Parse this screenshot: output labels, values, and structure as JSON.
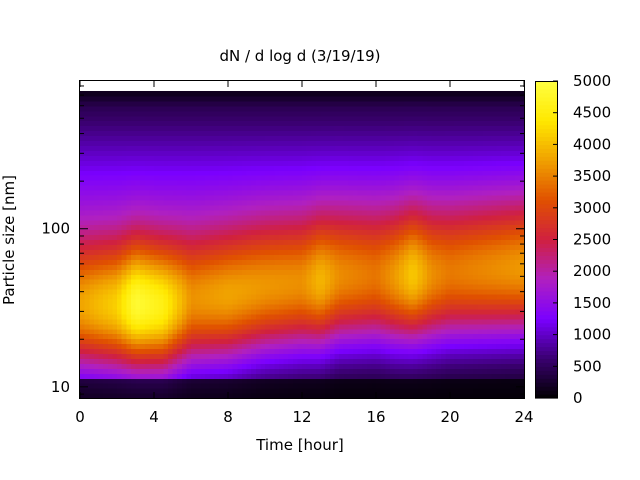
{
  "chart_data": {
    "type": "heatmap",
    "title": "dN / d log d (3/19/19)",
    "xlabel": "Time [hour]",
    "ylabel": "Particle size [nm]",
    "xlim": [
      0,
      24
    ],
    "ylim": [
      8.5,
      860
    ],
    "yscale": "log",
    "x_ticks": [
      0,
      4,
      8,
      12,
      16,
      20,
      24
    ],
    "x_tick_labels": [
      "0",
      "4",
      "8",
      "12",
      "16",
      "20",
      "24"
    ],
    "y_ticks": [
      10,
      100
    ],
    "y_tick_labels": [
      "10",
      "100"
    ],
    "colorbar": {
      "range": [
        0,
        5000
      ],
      "ticks": [
        0,
        500,
        1000,
        1500,
        2000,
        2500,
        3000,
        3500,
        4000,
        4500,
        5000
      ],
      "tick_labels": [
        "0",
        "500",
        "1000",
        "1500",
        "2000",
        "2500",
        "3000",
        "3500",
        "4000",
        "4500",
        "5000"
      ],
      "colormap": [
        "#000000",
        "#3a0070",
        "#7a00ff",
        "#b020c0",
        "#d02040",
        "#e05000",
        "#f0a000",
        "#ffe800",
        "#ffff40"
      ]
    },
    "grid": false,
    "size_distribution": {
      "time_hours": [
        0,
        2,
        3,
        4.5,
        6,
        8,
        10,
        12,
        13,
        14,
        16,
        17,
        18,
        19,
        20,
        22,
        24
      ],
      "peak_diameter_nm": [
        30,
        30,
        31,
        30,
        32,
        34,
        38,
        40,
        42,
        44,
        44,
        44,
        46,
        45,
        46,
        48,
        50
      ],
      "peak_value": [
        3200,
        3600,
        4300,
        4000,
        3000,
        3100,
        2900,
        2800,
        3100,
        2700,
        2500,
        2800,
        3200,
        2700,
        2500,
        2600,
        2700
      ]
    }
  }
}
